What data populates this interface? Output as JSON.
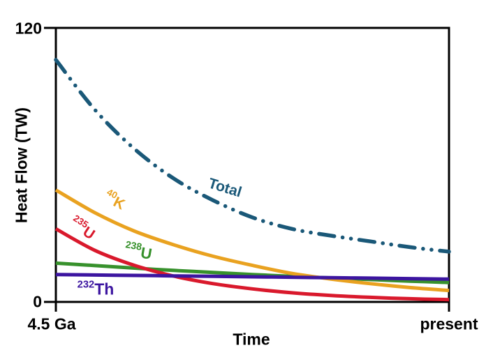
{
  "chart_data": {
    "type": "line",
    "title": "",
    "xlabel": "Time",
    "ylabel": "Heat Flow (TW)",
    "ylim": [
      0,
      120
    ],
    "grid": false,
    "legend": "inline-curve-labels",
    "y_tick_labels": [
      "120",
      "0"
    ],
    "x_tick_labels": [
      "4.5 Ga",
      "present"
    ],
    "x_axis_note": "x is fraction of time elapsed from 4.5 Ga (0) to present (1)",
    "x": [
      0,
      0.1,
      0.2,
      0.3,
      0.4,
      0.5,
      0.6,
      0.7,
      0.8,
      0.9,
      1.0
    ],
    "series": [
      {
        "name": "Total",
        "label": {
          "sup": "",
          "base": "Total"
        },
        "color": "#1a5878",
        "line_style": "dash-dot-dot",
        "values": [
          106,
          84,
          67,
          54,
          44.5,
          37,
          32,
          29,
          26.5,
          24,
          22
        ]
      },
      {
        "name": "40K",
        "label": {
          "sup": "40",
          "base": "K"
        },
        "color": "#e9a220",
        "line_style": "solid",
        "values": [
          49,
          39,
          31,
          25,
          20,
          16,
          12.5,
          10,
          8,
          6.3,
          5
        ]
      },
      {
        "name": "235U",
        "label": {
          "sup": "235",
          "base": "U"
        },
        "color": "#d9192c",
        "line_style": "solid",
        "values": [
          32,
          22.5,
          16,
          11.3,
          8,
          5.7,
          4,
          2.8,
          2,
          1.4,
          1
        ]
      },
      {
        "name": "238U",
        "label": {
          "sup": "238",
          "base": "U"
        },
        "color": "#37912c",
        "line_style": "solid",
        "values": [
          17,
          15.9,
          14.8,
          13.8,
          12.9,
          12,
          11.2,
          10.5,
          9.8,
          9.1,
          8.5
        ]
      },
      {
        "name": "232Th",
        "label": {
          "sup": "232",
          "base": "Th"
        },
        "color": "#3c15a0",
        "line_style": "solid",
        "values": [
          12,
          11.8,
          11.6,
          11.4,
          11.2,
          11,
          10.8,
          10.6,
          10.4,
          10.2,
          10
        ]
      }
    ],
    "axis_color": "#000000"
  }
}
